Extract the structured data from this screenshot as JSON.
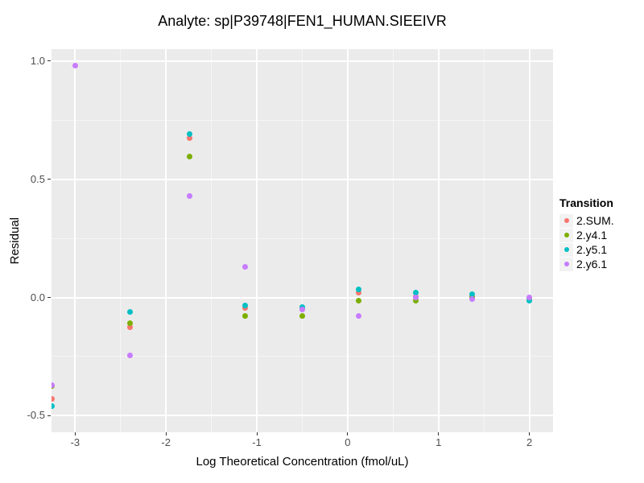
{
  "chart_data": {
    "type": "scatter",
    "title": "Analyte: sp|P39748|FEN1_HUMAN.SIEEIVR",
    "xlabel": "Log Theoretical Concentration (fmol/uL)",
    "ylabel": "Residual",
    "xlim": [
      -3.26,
      2.26
    ],
    "ylim": [
      -0.57,
      1.05
    ],
    "grid": true,
    "panel_bg": "#EBEBEB",
    "x_ticks": [
      {
        "value": -3,
        "label": "-3"
      },
      {
        "value": -2,
        "label": "-2"
      },
      {
        "value": -1,
        "label": "-1"
      },
      {
        "value": 0,
        "label": "0"
      },
      {
        "value": 1,
        "label": "1"
      },
      {
        "value": 2,
        "label": "2"
      }
    ],
    "y_ticks": [
      {
        "value": 1.0,
        "label": "1.0"
      },
      {
        "value": 0.5,
        "label": "0.5"
      },
      {
        "value": 0.0,
        "label": "0.0"
      },
      {
        "value": -0.5,
        "label": "-0.5"
      }
    ],
    "x_minor": [
      -2.5,
      -1.5,
      -0.5,
      0.5,
      1.5
    ],
    "y_minor": [
      0.75,
      0.25,
      -0.25
    ],
    "legend": {
      "title": "Transition",
      "position": "right"
    },
    "series": [
      {
        "name": "2.SUM.",
        "color": "#F8766D",
        "points": [
          [
            -3.26,
            -0.43
          ],
          [
            -2.4,
            -0.125
          ],
          [
            -1.74,
            0.675
          ],
          [
            -1.13,
            -0.045
          ],
          [
            -0.5,
            -0.048
          ],
          [
            0.12,
            0.02
          ],
          [
            0.75,
            0.005
          ],
          [
            1.37,
            0.002
          ],
          [
            2.0,
            -0.005
          ]
        ]
      },
      {
        "name": "2.y4.1",
        "color": "#7CAE00",
        "points": [
          [
            -3.26,
            -0.375
          ],
          [
            -2.4,
            -0.11
          ],
          [
            -1.74,
            0.595
          ],
          [
            -1.13,
            -0.078
          ],
          [
            -0.5,
            -0.078
          ],
          [
            0.12,
            -0.015
          ],
          [
            0.75,
            -0.015
          ],
          [
            1.37,
            0.0
          ],
          [
            2.0,
            -0.005
          ]
        ]
      },
      {
        "name": "2.y5.1",
        "color": "#00BFC4",
        "points": [
          [
            -3.26,
            -0.46
          ],
          [
            -2.4,
            -0.06
          ],
          [
            -1.74,
            0.69
          ],
          [
            -1.13,
            -0.035
          ],
          [
            -0.5,
            -0.04
          ],
          [
            0.12,
            0.035
          ],
          [
            0.75,
            0.02
          ],
          [
            1.37,
            0.012
          ],
          [
            2.0,
            -0.012
          ]
        ]
      },
      {
        "name": "2.y6.1",
        "color": "#C77CFF",
        "points": [
          [
            -3.26,
            -0.37
          ],
          [
            -3.0,
            0.98
          ],
          [
            -2.4,
            -0.245
          ],
          [
            -1.74,
            0.43
          ],
          [
            -1.13,
            0.13
          ],
          [
            -0.5,
            -0.05
          ],
          [
            0.12,
            -0.077
          ],
          [
            0.75,
            0.0
          ],
          [
            1.37,
            -0.008
          ],
          [
            2.0,
            0.0
          ]
        ]
      }
    ]
  }
}
